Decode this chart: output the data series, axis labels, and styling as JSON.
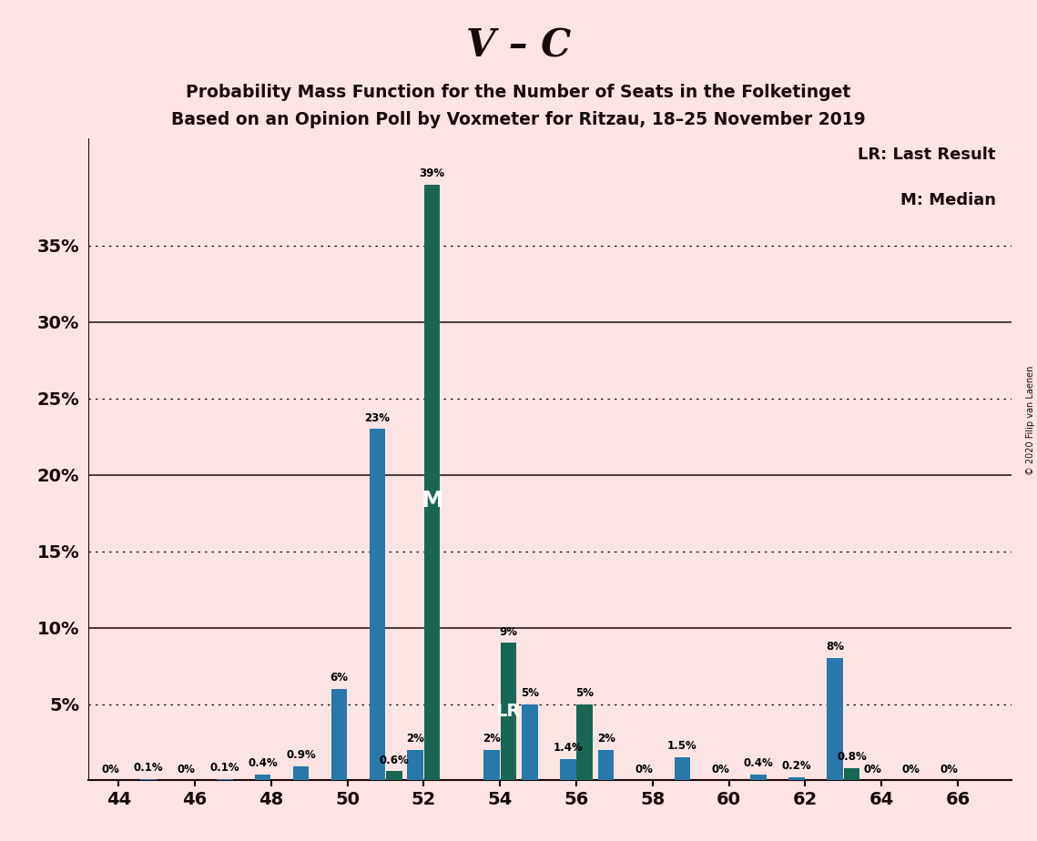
{
  "title": "V – C",
  "subtitle1": "Probability Mass Function for the Number of Seats in the Folketinget",
  "subtitle2": "Based on an Opinion Poll by Voxmeter for Ritzau, 18–25 November 2019",
  "legend_lr": "LR: Last Result",
  "legend_m": "M: Median",
  "copyright": "© 2020 Filip van Laenen",
  "background_color": "#fce4e4",
  "bar_color_blue": "#2878a8",
  "bar_color_teal": "#1a6655",
  "ylim": [
    0,
    42
  ],
  "solid_yticks": [
    10,
    20,
    30
  ],
  "dotted_yticks": [
    5,
    15,
    25,
    35
  ],
  "x_tick_positions": [
    44,
    46,
    48,
    50,
    52,
    54,
    56,
    58,
    60,
    62,
    64,
    66
  ],
  "seats": [
    44,
    45,
    46,
    47,
    48,
    49,
    50,
    51,
    52,
    53,
    54,
    55,
    56,
    57,
    58,
    59,
    60,
    61,
    62,
    63,
    64,
    65,
    66
  ],
  "values_blue": [
    0.0,
    0.1,
    0.0,
    0.1,
    0.4,
    0.9,
    6.0,
    23.0,
    2.0,
    0.0,
    2.0,
    5.0,
    1.4,
    2.0,
    0.0,
    1.5,
    0.0,
    0.4,
    0.2,
    8.0,
    0.0,
    0.0,
    0.0
  ],
  "values_teal": [
    0.0,
    0.0,
    0.0,
    0.0,
    0.0,
    0.0,
    0.0,
    0.6,
    39.0,
    0.0,
    9.0,
    0.0,
    5.0,
    0.0,
    0.0,
    0.0,
    0.0,
    0.0,
    0.0,
    0.8,
    0.0,
    0.0,
    0.0
  ],
  "bar_labels_blue": [
    "0%",
    "0.1%",
    "0%",
    "0.1%",
    "0.4%",
    "0.9%",
    "6%",
    "23%",
    "2%",
    "",
    "2%",
    "5%",
    "1.4%",
    "2%",
    "0%",
    "1.5%",
    "0%",
    "0.4%",
    "0.2%",
    "8%",
    "0%",
    "0%",
    "0%"
  ],
  "bar_labels_teal": [
    "",
    "",
    "",
    "",
    "",
    "",
    "",
    "0.6%",
    "39%",
    "",
    "9%",
    "",
    "5%",
    "",
    "",
    "",
    "",
    "",
    "",
    "0.8%",
    "",
    "",
    ""
  ],
  "M_seat": 52,
  "LR_seat": 54
}
